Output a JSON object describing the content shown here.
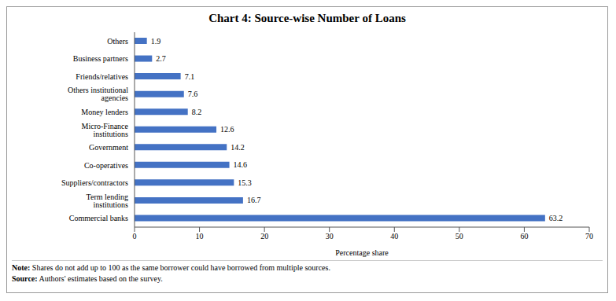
{
  "chart_data": {
    "type": "bar",
    "title": "Chart 4: Source-wise Number of Loans",
    "orientation": "horizontal",
    "categories": [
      "Others",
      "Business partners",
      "Friends/relatives",
      "Others institutional agencies",
      "Money lenders",
      "Micro-Finance institutions",
      "Government",
      "Co-operatives",
      "Suppliers/contractors",
      "Term lending institutions",
      "Commercial banks"
    ],
    "values": [
      1.9,
      2.7,
      7.1,
      7.6,
      8.2,
      12.6,
      14.2,
      14.6,
      15.3,
      16.7,
      63.2
    ],
    "color": "#4472c4",
    "xlim": [
      0,
      70
    ],
    "xticks": [
      0,
      10,
      20,
      30,
      40,
      50,
      60,
      70
    ],
    "x_label": "Percentage share",
    "data_labels": true,
    "grid": false,
    "annotations": [
      "Note: Shares do not add up to 100 as the same borrower could have borrowed from multiple sources.",
      "Source: Authors' estimates based on the survey."
    ]
  }
}
